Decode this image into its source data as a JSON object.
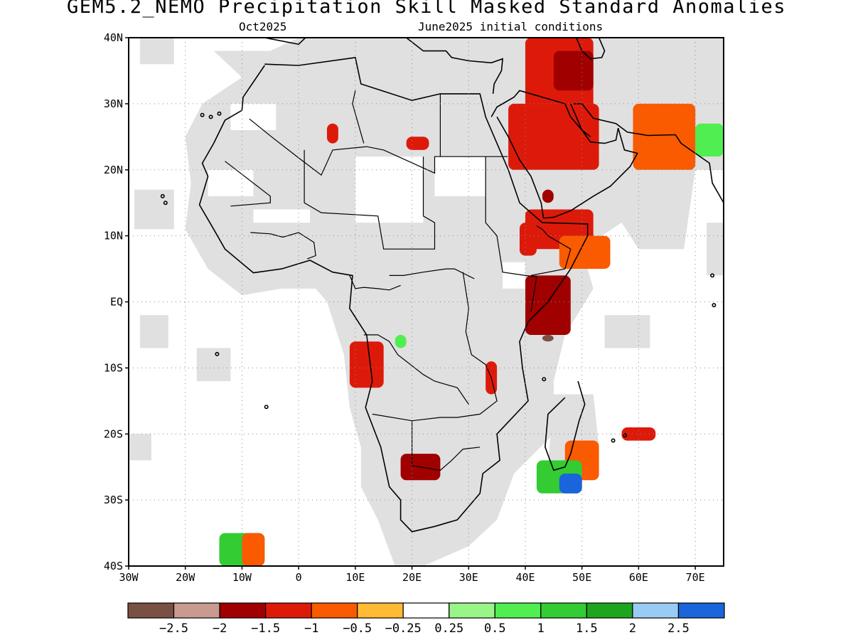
{
  "title": "GEM5.2_NEMO Precipitation Skill Masked Standard Anomalies",
  "subtitle_left": "Oct2025",
  "subtitle_right": "June2025 initial conditions",
  "map": {
    "lon_range": [
      -30,
      75
    ],
    "lat_range": [
      -40,
      40
    ],
    "lat_ticks": [
      {
        "value": 40,
        "label": "40N"
      },
      {
        "value": 30,
        "label": "30N"
      },
      {
        "value": 20,
        "label": "20N"
      },
      {
        "value": 10,
        "label": "10N"
      },
      {
        "value": 0,
        "label": "EQ"
      },
      {
        "value": -10,
        "label": "10S"
      },
      {
        "value": -20,
        "label": "20S"
      },
      {
        "value": -30,
        "label": "30S"
      },
      {
        "value": -40,
        "label": "40S"
      }
    ],
    "lon_ticks": [
      {
        "value": -30,
        "label": "30W"
      },
      {
        "value": -20,
        "label": "20W"
      },
      {
        "value": -10,
        "label": "10W"
      },
      {
        "value": 0,
        "label": "0"
      },
      {
        "value": 10,
        "label": "10E"
      },
      {
        "value": 20,
        "label": "20E"
      },
      {
        "value": 30,
        "label": "30E"
      },
      {
        "value": 40,
        "label": "40E"
      },
      {
        "value": 50,
        "label": "50E"
      },
      {
        "value": 60,
        "label": "60E"
      },
      {
        "value": 70,
        "label": "70E"
      }
    ],
    "grid": "dotted",
    "mask_color": "#e0e0e0"
  },
  "colorbar": {
    "colors": [
      "#7a5045",
      "#c99a90",
      "#a00000",
      "#dd1a0a",
      "#fa5a00",
      "#ffbb33",
      "#ffffff",
      "#99f588",
      "#50ee50",
      "#33cc33",
      "#1da51d",
      "#99ccf5",
      "#1a64dc"
    ],
    "labels": [
      "−2.5",
      "−2",
      "−1.5",
      "−1",
      "−0.5",
      "−0.25",
      "0.25",
      "0.5",
      "1",
      "1.5",
      "2",
      "2.5"
    ]
  },
  "anomaly_regions": [
    {
      "name": "arabia-north",
      "category": -1,
      "lon": [
        40,
        52
      ],
      "lat": [
        24,
        40
      ]
    },
    {
      "name": "arabia-gulf",
      "category": -1.5,
      "lon": [
        45,
        52
      ],
      "lat": [
        32,
        38
      ]
    },
    {
      "name": "arabia-central",
      "category": -1,
      "lon": [
        37,
        53
      ],
      "lat": [
        20,
        30
      ]
    },
    {
      "name": "iran-south",
      "category": -0.5,
      "lon": [
        59,
        70
      ],
      "lat": [
        20,
        30
      ]
    },
    {
      "name": "india-west",
      "category": 0.5,
      "lon": [
        70,
        75
      ],
      "lat": [
        22,
        27
      ]
    },
    {
      "name": "horn-of-africa",
      "category": -1,
      "lon": [
        40,
        52
      ],
      "lat": [
        8,
        14
      ]
    },
    {
      "name": "somalia-coast",
      "category": -0.5,
      "lon": [
        46,
        55
      ],
      "lat": [
        5,
        10
      ]
    },
    {
      "name": "kenya-somalia",
      "category": -1.5,
      "lon": [
        40,
        48
      ],
      "lat": [
        -5,
        4
      ]
    },
    {
      "name": "tanzania-coast",
      "category": -2.5,
      "lon": [
        43,
        45
      ],
      "lat": [
        -6,
        -5
      ]
    },
    {
      "name": "yemen",
      "category": -1.5,
      "lon": [
        43,
        45
      ],
      "lat": [
        15,
        17
      ]
    },
    {
      "name": "ethiopia-west",
      "category": -1,
      "lon": [
        39,
        42
      ],
      "lat": [
        7,
        12
      ]
    },
    {
      "name": "libya-south",
      "category": -1,
      "lon": [
        5,
        7
      ],
      "lat": [
        24,
        27
      ]
    },
    {
      "name": "egypt-west",
      "category": -1,
      "lon": [
        19,
        23
      ],
      "lat": [
        23,
        25
      ]
    },
    {
      "name": "angola",
      "category": -1,
      "lon": [
        9,
        15
      ],
      "lat": [
        -13,
        -6
      ]
    },
    {
      "name": "tanzania-lake",
      "category": -1,
      "lon": [
        33,
        35
      ],
      "lat": [
        -14,
        -9
      ]
    },
    {
      "name": "botswana",
      "category": -1.5,
      "lon": [
        18,
        25
      ],
      "lat": [
        -27,
        -23
      ]
    },
    {
      "name": "madagascar-east",
      "category": -0.5,
      "lon": [
        47,
        53
      ],
      "lat": [
        -27,
        -21
      ]
    },
    {
      "name": "mozambique-channel",
      "category": 1,
      "lon": [
        42,
        50
      ],
      "lat": [
        -29,
        -24
      ]
    },
    {
      "name": "mozambique-channel-core",
      "category": 2.5,
      "lon": [
        46,
        50
      ],
      "lat": [
        -29,
        -26
      ]
    },
    {
      "name": "mascarene",
      "category": -1,
      "lon": [
        57,
        63
      ],
      "lat": [
        -21,
        -19
      ]
    },
    {
      "name": "south-atlantic",
      "category": 1,
      "lon": [
        -14,
        -6
      ],
      "lat": [
        -40,
        -35
      ]
    },
    {
      "name": "south-atlantic-east",
      "category": -0.5,
      "lon": [
        -10,
        -6
      ],
      "lat": [
        -40,
        -35
      ]
    },
    {
      "name": "congo",
      "category": 0.5,
      "lon": [
        17,
        19
      ],
      "lat": [
        -7,
        -5
      ]
    }
  ]
}
